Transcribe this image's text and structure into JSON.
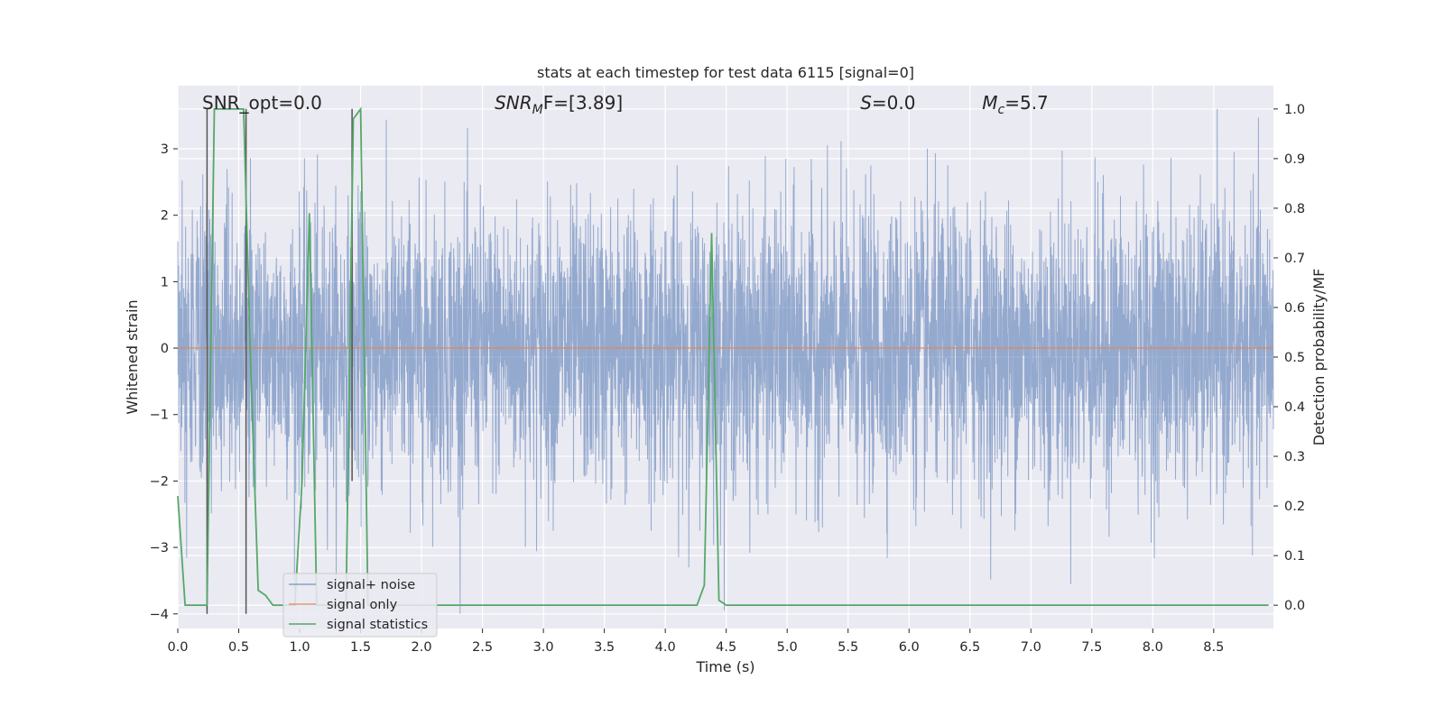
{
  "chart_data": {
    "type": "line",
    "title": "stats at each timestep for test data 6115 [signal=0]",
    "xlabel": "Time (s)",
    "ylabel": "Whitened strain",
    "ylabel_right": "Detection probability/MF",
    "xlim": [
      0.0,
      8.99
    ],
    "ylim": [
      -4.22,
      3.95
    ],
    "ylim_right": [
      -0.047,
      1.047
    ],
    "xticks": [
      0.0,
      0.5,
      1.0,
      1.5,
      2.0,
      2.5,
      3.0,
      3.5,
      4.0,
      4.5,
      5.0,
      5.5,
      6.0,
      6.5,
      7.0,
      7.5,
      8.0,
      8.5
    ],
    "xtick_labels": [
      "0.0",
      "0.5",
      "1.0",
      "1.5",
      "2.0",
      "2.5",
      "3.0",
      "3.5",
      "4.0",
      "4.5",
      "5.0",
      "5.5",
      "6.0",
      "6.5",
      "7.0",
      "7.5",
      "8.0",
      "8.5"
    ],
    "yticks": [
      -4,
      -3,
      -2,
      -1,
      0,
      1,
      2,
      3
    ],
    "ytick_labels": [
      "−4",
      "−3",
      "−2",
      "−1",
      "0",
      "1",
      "2",
      "3"
    ],
    "yticks_right": [
      0.0,
      0.1,
      0.2,
      0.3,
      0.4,
      0.5,
      0.6,
      0.7,
      0.8,
      0.9,
      1.0
    ],
    "ytick_right_labels": [
      "0.0",
      "0.1",
      "0.2",
      "0.3",
      "0.4",
      "0.5",
      "0.6",
      "0.7",
      "0.8",
      "0.9",
      "1.0"
    ],
    "grid": true,
    "legend": {
      "location": "lower left",
      "entries": [
        "signal+ noise",
        "signal only",
        "signal statistics"
      ]
    },
    "annotations": [
      {
        "text": "SNR_opt=0.0",
        "x": 0.2,
        "y": 3.6
      },
      {
        "text_main": "SNR",
        "text_sub": "M",
        "text_after": "F=[3.89]",
        "x": 2.6,
        "y": 3.6
      },
      {
        "text_main": "S",
        "text_after": "=0.0",
        "x": 5.6,
        "y": 3.6
      },
      {
        "text_main": "M",
        "text_sub": "c",
        "text_after": "=5.7",
        "x": 6.6,
        "y": 3.6
      }
    ],
    "series": [
      {
        "name": "signal+ noise",
        "axis": "left",
        "color": "#4c72b0",
        "description_values": "white noise, approx. standard normal, amplitude up to about ±3.6 over 0–8.99 s"
      },
      {
        "name": "signal only",
        "axis": "left",
        "color": "#dd8452",
        "x": [
          0.0,
          8.99
        ],
        "values": [
          0.0,
          0.0
        ]
      },
      {
        "name": "signal statistics",
        "axis": "right",
        "color": "#55a868",
        "x": [
          0.0,
          0.06,
          0.12,
          0.18,
          0.24,
          0.3,
          0.36,
          0.42,
          0.48,
          0.54,
          0.6,
          0.66,
          0.72,
          0.78,
          0.84,
          0.9,
          0.96,
          1.02,
          1.08,
          1.14,
          1.2,
          1.26,
          1.32,
          1.38,
          1.44,
          1.5,
          1.56,
          1.62,
          1.68,
          1.74,
          1.8,
          4.2,
          4.26,
          4.32,
          4.38,
          4.44,
          4.5,
          4.56,
          4.62,
          8.95
        ],
        "values": [
          0.22,
          0.0,
          0.0,
          0.0,
          0.0,
          1.0,
          1.0,
          1.0,
          1.0,
          1.0,
          0.47,
          0.03,
          0.02,
          0.0,
          0.0,
          0.0,
          0.0,
          0.25,
          0.79,
          0.0,
          0.0,
          0.0,
          0.0,
          0.0,
          0.98,
          1.0,
          0.0,
          0.0,
          0.0,
          0.0,
          0.0,
          0.0,
          0.0,
          0.04,
          0.75,
          0.01,
          0.0,
          0.0,
          0.0,
          0.0
        ]
      }
    ],
    "vertical_lines": {
      "color": "#555555",
      "x": [
        0.24,
        0.56,
        1.43
      ],
      "y_top": [
        3.6,
        3.6,
        3.6
      ],
      "y_bottom": [
        -4.0,
        -4.0,
        -2.0
      ]
    }
  }
}
